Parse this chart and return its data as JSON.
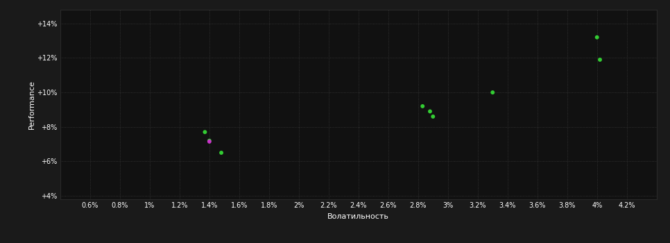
{
  "background_color": "#1a1a1a",
  "plot_bg_color": "#111111",
  "grid_color": "#3a3a3a",
  "text_color": "#ffffff",
  "xlabel": "Волатильность",
  "ylabel": "Performance",
  "xlim": [
    0.004,
    0.044
  ],
  "ylim": [
    0.038,
    0.148
  ],
  "xticks": [
    0.006,
    0.008,
    0.01,
    0.012,
    0.014,
    0.016,
    0.018,
    0.02,
    0.022,
    0.024,
    0.026,
    0.028,
    0.03,
    0.032,
    0.034,
    0.036,
    0.038,
    0.04,
    0.042
  ],
  "xtick_labels": [
    "0.6%",
    "0.8%",
    "1%",
    "1.2%",
    "1.4%",
    "1.6%",
    "1.8%",
    "2%",
    "2.2%",
    "2.4%",
    "2.6%",
    "2.8%",
    "3%",
    "3.2%",
    "3.4%",
    "3.6%",
    "3.8%",
    "4%",
    "4.2%"
  ],
  "yticks": [
    0.04,
    0.06,
    0.08,
    0.1,
    0.12,
    0.14
  ],
  "ytick_labels": [
    "+4%",
    "+6%",
    "+8%",
    "+10%",
    "+12%",
    "+14%"
  ],
  "green_points": [
    [
      0.0137,
      0.077
    ],
    [
      0.014,
      0.072
    ],
    [
      0.0148,
      0.065
    ],
    [
      0.0283,
      0.092
    ],
    [
      0.0288,
      0.089
    ],
    [
      0.029,
      0.086
    ],
    [
      0.033,
      0.1
    ],
    [
      0.04,
      0.132
    ],
    [
      0.0402,
      0.119
    ]
  ],
  "magenta_points": [
    [
      0.014,
      0.0715
    ]
  ],
  "green_color": "#33cc33",
  "magenta_color": "#cc33cc",
  "point_size": 18
}
